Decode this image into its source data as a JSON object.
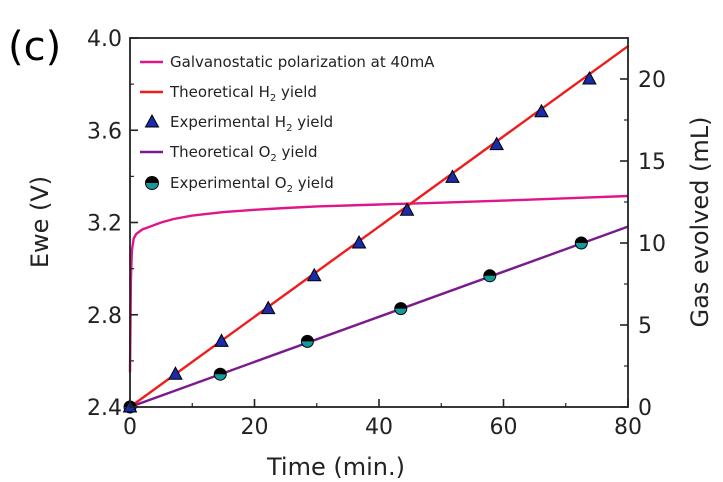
{
  "panel_label": "(c)",
  "chart_data": {
    "type": "line",
    "xlabel": "Time (min.)",
    "ylabel_left": "Ewe (V)",
    "ylabel_right": "Gas evolved (mL)",
    "xlim": [
      0,
      80
    ],
    "ylim_left": [
      2.4,
      4.0
    ],
    "ylim_right": [
      0,
      22.5
    ],
    "x_ticks": [
      "0",
      "20",
      "40",
      "60",
      "80"
    ],
    "y_left_ticks": [
      "2.4",
      "2.8",
      "3.2",
      "3.6",
      "4.0"
    ],
    "y_right_ticks": [
      "0",
      "5",
      "10",
      "15",
      "20"
    ],
    "grid": false,
    "legend_position": "top-left",
    "series": [
      {
        "key": "galv",
        "name": "Galvanostatic polarization at 40mA",
        "axis": "left",
        "style": "line",
        "color": "#e0158a",
        "x": [
          0,
          0.15,
          0.3,
          0.6,
          1,
          2,
          3,
          5,
          7,
          10,
          15,
          20,
          25,
          30,
          40,
          50,
          60,
          70,
          80
        ],
        "y": [
          2.55,
          2.95,
          3.08,
          3.13,
          3.15,
          3.17,
          3.18,
          3.2,
          3.215,
          3.23,
          3.245,
          3.255,
          3.263,
          3.27,
          3.278,
          3.286,
          3.295,
          3.305,
          3.315
        ]
      },
      {
        "key": "th_h2",
        "name_main": "Theoretical H",
        "name_sub": "2",
        "name_tail": " yield",
        "axis": "right",
        "style": "line",
        "color": "#ee1c1c",
        "x": [
          0,
          80
        ],
        "y": [
          0,
          22
        ]
      },
      {
        "key": "ex_h2",
        "name_main": "Experimental H",
        "name_sub": "2",
        "name_tail": " yield",
        "axis": "right",
        "style": "triangle",
        "color": "#1a2aa8",
        "x": [
          0,
          7.3,
          14.7,
          22.2,
          29.6,
          36.8,
          44.5,
          51.8,
          58.9,
          66.1,
          73.8
        ],
        "y": [
          0,
          2,
          4,
          6,
          8,
          10,
          12,
          14,
          16,
          18,
          20
        ]
      },
      {
        "key": "th_o2",
        "name_main": "Theoretical O",
        "name_sub": "2",
        "name_tail": " yield",
        "axis": "right",
        "style": "line",
        "color": "#7a1a8c",
        "x": [
          0,
          80
        ],
        "y": [
          0,
          11
        ]
      },
      {
        "key": "ex_o2",
        "name_main": "Experimental O",
        "name_sub": "2",
        "name_tail": " yield",
        "axis": "right",
        "style": "circle",
        "color": "#159a9c",
        "x": [
          0,
          14.5,
          28.5,
          43.5,
          57.8,
          72.5
        ],
        "y": [
          0,
          2,
          4,
          6,
          8,
          10
        ]
      }
    ]
  }
}
